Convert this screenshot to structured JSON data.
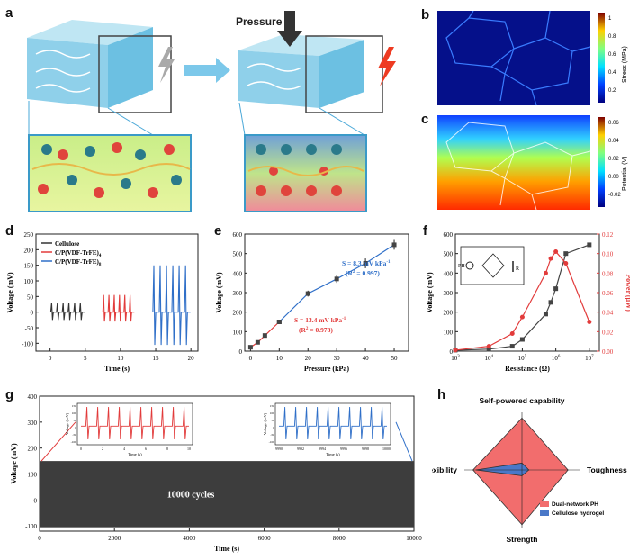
{
  "panels": {
    "a": "a",
    "b": "b",
    "c": "c",
    "d": "d",
    "e": "e",
    "f": "f",
    "g": "g",
    "h": "h"
  },
  "schematic": {
    "pressure_label": "Pressure"
  },
  "colorbar_b": {
    "label": "Stress (MPa)",
    "ticks": [
      "1",
      "0.8",
      "0.6",
      "0.4",
      "0.2"
    ]
  },
  "colorbar_c": {
    "label": "Potential (V)",
    "ticks": [
      "0.06",
      "0.04",
      "0.02",
      "0.00",
      "-0.02"
    ]
  },
  "chart_data": [
    {
      "id": "d",
      "type": "line",
      "xlabel": "Time (s)",
      "ylabel": "Voltage (mV)",
      "xlim": [
        -2,
        21
      ],
      "ylim": [
        -125,
        250
      ],
      "xticks": [
        0,
        5,
        10,
        15,
        20
      ],
      "yticks": [
        -100,
        -50,
        0,
        50,
        100,
        150,
        200,
        250
      ],
      "series": [
        {
          "name": "Cellulose",
          "color": "#333333",
          "t_start": 0.1,
          "t_end": 5.0,
          "peaks": 6,
          "peak": 30,
          "trough": -25
        },
        {
          "name": "C/P(VDF-TrFE)",
          "sub": "4",
          "color": "#e23b3b",
          "t_start": 7.5,
          "t_end": 12.0,
          "peaks": 6,
          "peak": 55,
          "trough": -30
        },
        {
          "name": "C/P(VDF-TrFE)",
          "sub": "8",
          "color": "#2f6fc8",
          "t_start": 14.6,
          "t_end": 20.0,
          "peaks": 6,
          "peak": 150,
          "trough": -105
        }
      ]
    },
    {
      "id": "e",
      "type": "line",
      "xlabel": "Pressure (kPa)",
      "ylabel": "Voltage (mV)",
      "xlim": [
        -2,
        55
      ],
      "ylim": [
        0,
        600
      ],
      "xticks": [
        0,
        10,
        20,
        30,
        40,
        50
      ],
      "yticks": [
        0,
        100,
        200,
        300,
        400,
        500,
        600
      ],
      "series": [
        {
          "name": "low",
          "color": "#e23b3b",
          "x": [
            0,
            2.5,
            5,
            10
          ],
          "y": [
            20,
            45,
            80,
            150
          ]
        },
        {
          "name": "high",
          "color": "#2f6fc8",
          "x": [
            10,
            20,
            30,
            40,
            50
          ],
          "y": [
            150,
            295,
            370,
            450,
            545
          ],
          "err": [
            10,
            15,
            20,
            25,
            25
          ]
        }
      ],
      "annotations": [
        {
          "line1": "S = 8.3 mV kPa",
          "sup": "-1",
          "line2": "(R",
          "sup2": "2",
          "line2b": " = 0.997)",
          "color": "#2f6fc8"
        },
        {
          "line1": "S = 13.4 mV kPa",
          "sup": "-1",
          "line2": "(R",
          "sup2": "2",
          "line2b": " = 0.978)",
          "color": "#e23b3b"
        }
      ]
    },
    {
      "id": "f",
      "type": "line",
      "xlabel": "Resistance (Ω)",
      "ylabel": "Voltage (mV)",
      "y2label": "Power (μW)",
      "xscale": "log",
      "xlim": [
        3,
        7.3
      ],
      "ylim": [
        0,
        600
      ],
      "y2lim": [
        0,
        0.12
      ],
      "xticks": [
        "10",
        "10",
        "10",
        "10",
        "10"
      ],
      "xtick_exp": [
        "3",
        "4",
        "5",
        "6",
        "7"
      ],
      "yticks": [
        0,
        100,
        200,
        300,
        400,
        500,
        600
      ],
      "y2ticks": [
        "0.00",
        "0.02",
        "0.04",
        "0.06",
        "0.08",
        "0.10",
        "0.12"
      ],
      "voltage": {
        "logx": [
          3,
          4,
          4.7,
          5,
          5.7,
          5.85,
          6,
          6.3,
          7
        ],
        "y": [
          5,
          10,
          25,
          60,
          190,
          250,
          320,
          500,
          545
        ],
        "color": "#444444"
      },
      "power": {
        "logx": [
          3,
          4,
          4.7,
          5,
          5.7,
          5.85,
          6,
          6.3,
          7
        ],
        "y": [
          0.001,
          0.005,
          0.018,
          0.035,
          0.08,
          0.095,
          0.102,
          0.09,
          0.03
        ],
        "color": "#e23b3b"
      },
      "inset": {
        "PH": "PH",
        "R": "R"
      }
    },
    {
      "id": "g",
      "type": "area",
      "xlabel": "Time (s)",
      "ylabel": "Voltage (mV)",
      "xlim": [
        0,
        10000
      ],
      "ylim": [
        -120,
        400
      ],
      "xticks": [
        0,
        2000,
        4000,
        6000,
        8000,
        10000
      ],
      "yticks": [
        -100,
        0,
        100,
        200,
        300,
        400
      ],
      "band": {
        "top": 150,
        "bottom": -105,
        "color": "#3d3d3d",
        "label": "10000 cycles"
      },
      "insets": [
        {
          "xticks": [
            "0",
            "2",
            "4",
            "6",
            "8",
            "10"
          ],
          "ylabel": "Voltage (mV)",
          "xlabel": "Time (s)",
          "yticks": [
            "150",
            "100",
            "50",
            "0",
            "-50",
            "-100"
          ],
          "color": "#e23b3b",
          "peaks": 10
        },
        {
          "xticks": [
            "9990",
            "9992",
            "9994",
            "9996",
            "9998",
            "10000"
          ],
          "ylabel": "Voltage (mV)",
          "xlabel": "Time (s)",
          "yticks": [
            "150",
            "100",
            "50",
            "0",
            "-50",
            "-100"
          ],
          "color": "#2f6fc8",
          "peaks": 10
        }
      ]
    },
    {
      "id": "h",
      "type": "radar",
      "axes": [
        "Self-powered capability",
        "Toughness",
        "Strength",
        "Flexibility"
      ],
      "series": [
        {
          "name": "Dual-network PH",
          "color": "#f26d6d",
          "values": [
            0.9,
            0.8,
            0.95,
            0.85
          ]
        },
        {
          "name": "Cellulose hydrogel",
          "color": "#4a78c8",
          "values": [
            0.12,
            0.12,
            0.1,
            0.8
          ]
        }
      ]
    }
  ]
}
